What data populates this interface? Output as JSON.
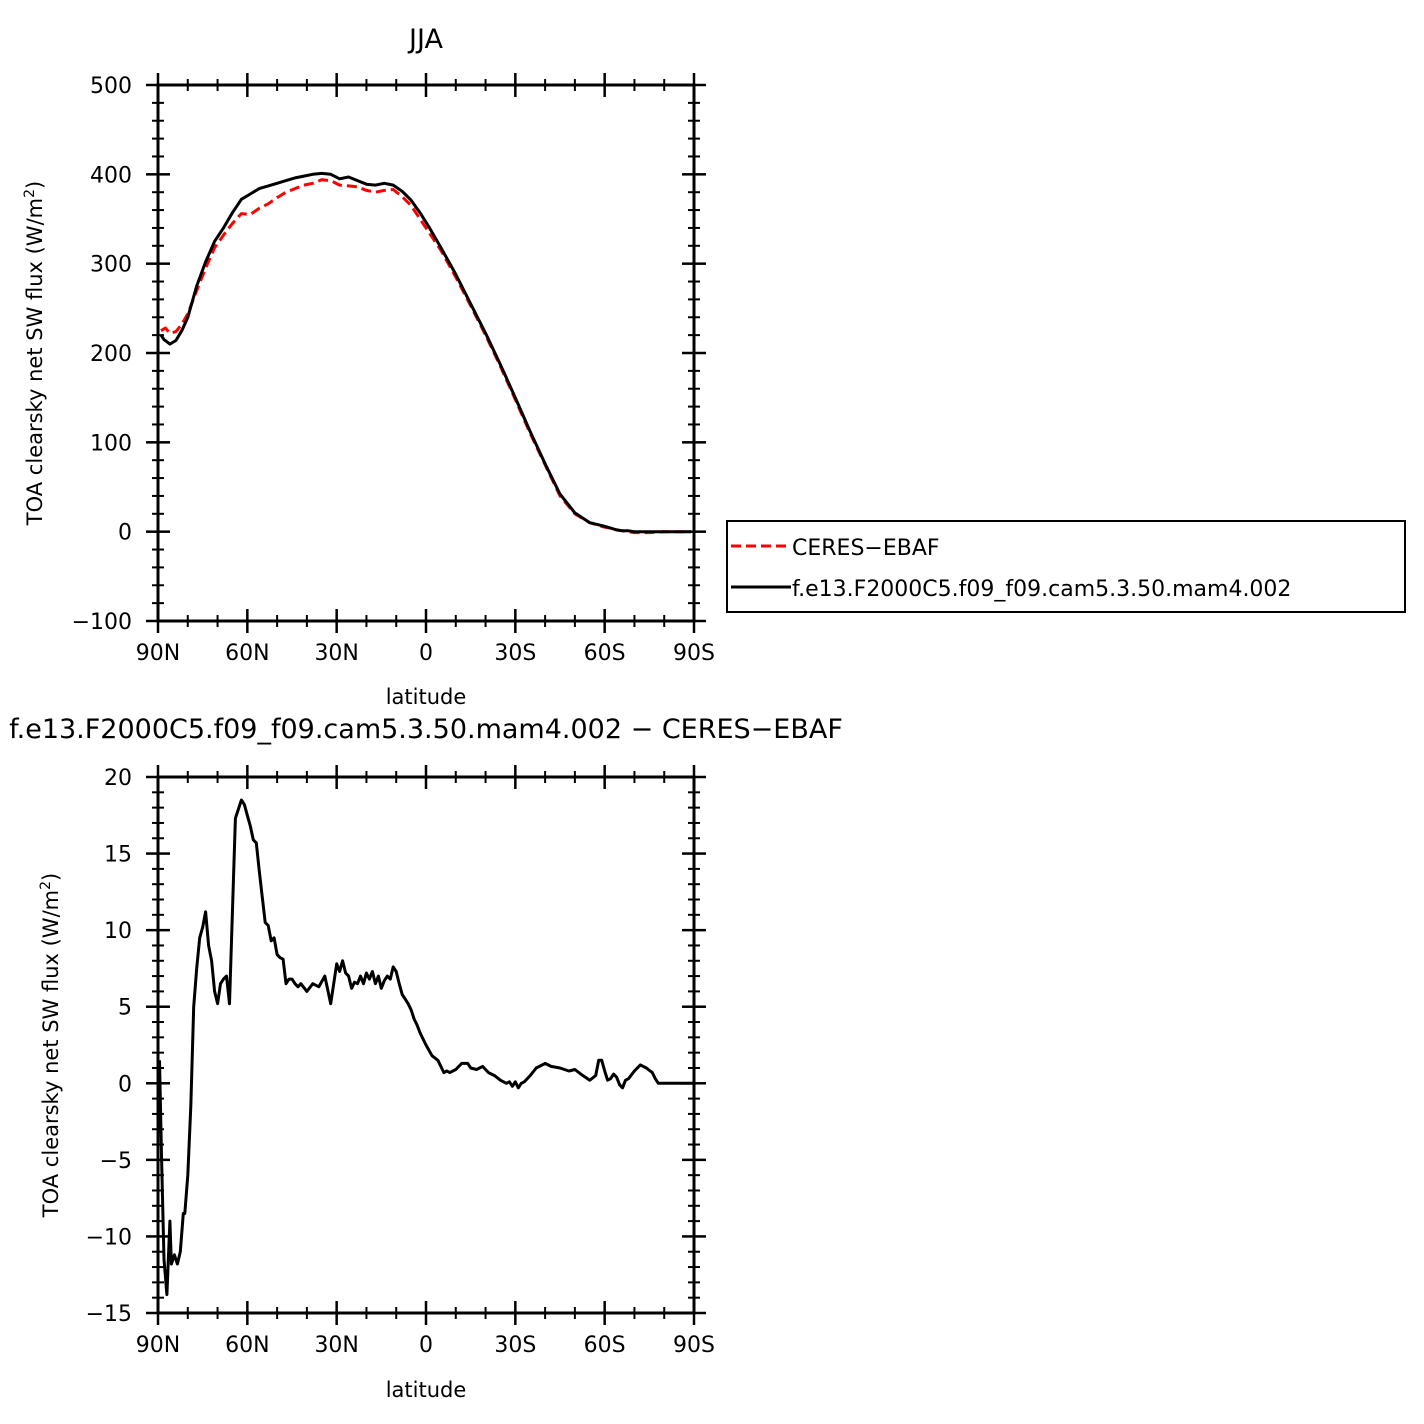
{
  "chart_data": [
    {
      "type": "line",
      "title": "JJA",
      "xlabel": "latitude",
      "ylabel": "TOA clearsky net SW flux (W/m²)",
      "xlim": [
        90,
        -90
      ],
      "ylim": [
        -100,
        500
      ],
      "xticks": [
        90,
        60,
        30,
        0,
        -30,
        -60,
        -90
      ],
      "xtick_labels": [
        "90N",
        "60N",
        "30N",
        "0",
        "30S",
        "60S",
        "90S"
      ],
      "yticks": [
        -100,
        0,
        100,
        200,
        300,
        400,
        500
      ],
      "ytick_labels": [
        "−100",
        "0",
        "100",
        "200",
        "300",
        "400",
        "500"
      ],
      "legend_position": "right",
      "series": [
        {
          "name": "CERES−EBAF",
          "color": "#ff0000",
          "dash": "dashed",
          "x": [
            89,
            87.5,
            86,
            84,
            82,
            80,
            77,
            74,
            71,
            68,
            65,
            62,
            59,
            56,
            53,
            50,
            47,
            44,
            41,
            38,
            35,
            32,
            29,
            26,
            23,
            20,
            17,
            14,
            11,
            8,
            5,
            2,
            -1,
            -5,
            -10,
            -15,
            -20,
            -25,
            -30,
            -35,
            -40,
            -45,
            -50,
            -55,
            -60,
            -62,
            -64,
            -66,
            -68,
            -70,
            -72,
            -75,
            -80,
            -85,
            -89
          ],
          "y": [
            225,
            228,
            222,
            224,
            232,
            244,
            270,
            295,
            318,
            332,
            345,
            356,
            355,
            362,
            367,
            374,
            380,
            384,
            388,
            390,
            394,
            393,
            388,
            387,
            386,
            382,
            380,
            382,
            383,
            375,
            365,
            350,
            335,
            315,
            285,
            253,
            220,
            185,
            148,
            110,
            75,
            40,
            20,
            10,
            5,
            4,
            2,
            1,
            0,
            -1,
            -1,
            -1,
            0,
            0,
            0
          ]
        },
        {
          "name": "f.e13.F2000C5.f09_f09.cam5.3.50.mam4.002",
          "color": "#000000",
          "dash": "solid",
          "x": [
            89,
            88,
            86,
            84,
            82,
            80,
            77,
            74,
            71,
            68,
            65,
            62,
            59,
            56,
            53,
            50,
            47,
            44,
            41,
            38,
            35,
            32,
            29,
            26,
            23,
            20,
            17,
            14,
            11,
            8,
            5,
            2,
            -1,
            -5,
            -10,
            -15,
            -20,
            -25,
            -30,
            -35,
            -40,
            -45,
            -50,
            -55,
            -60,
            -62,
            -64,
            -66,
            -68,
            -70,
            -72,
            -75,
            -80,
            -85,
            -89
          ],
          "y": [
            220,
            215,
            210,
            214,
            225,
            240,
            275,
            302,
            325,
            340,
            357,
            372,
            378,
            384,
            387,
            390,
            393,
            396,
            398,
            400,
            401,
            400,
            395,
            397,
            393,
            389,
            388,
            390,
            388,
            381,
            371,
            357,
            341,
            318,
            288,
            255,
            222,
            187,
            150,
            112,
            76,
            42,
            21,
            10,
            6,
            4,
            2,
            1,
            1,
            0,
            0,
            0,
            0,
            0,
            0
          ]
        }
      ]
    },
    {
      "type": "line",
      "title": "f.e13.F2000C5.f09_f09.cam5.3.50.mam4.002 − CERES−EBAF",
      "xlabel": "latitude",
      "ylabel": "TOA clearsky net SW flux (W/m²)",
      "xlim": [
        90,
        -90
      ],
      "ylim": [
        -15,
        20
      ],
      "xticks": [
        90,
        60,
        30,
        0,
        -30,
        -60,
        -90
      ],
      "xtick_labels": [
        "90N",
        "60N",
        "30N",
        "0",
        "30S",
        "60S",
        "90S"
      ],
      "yticks": [
        -15,
        -10,
        -5,
        0,
        5,
        10,
        15,
        20
      ],
      "ytick_labels": [
        "−15",
        "−10",
        "−5",
        "0",
        "5",
        "10",
        "15",
        "20"
      ],
      "series": [
        {
          "color": "#000000",
          "x": [
            89.5,
            88.8,
            88,
            87,
            86,
            85.5,
            84.5,
            83.5,
            82.5,
            81.5,
            81,
            80,
            79,
            78,
            77,
            76,
            75,
            74,
            73,
            72,
            71,
            70,
            69,
            68,
            67,
            66,
            64,
            62,
            61,
            60,
            59,
            58,
            57,
            56,
            55,
            54,
            53,
            52,
            51,
            50,
            49,
            48,
            47,
            46,
            45,
            44,
            43,
            42,
            40,
            38,
            36,
            34,
            32,
            30,
            29,
            28,
            27,
            26,
            25,
            24,
            23,
            22,
            21,
            20,
            19,
            18,
            17,
            16,
            15,
            14,
            13,
            12,
            11,
            10,
            9,
            8,
            7,
            6,
            5,
            4,
            3,
            2,
            1,
            0,
            -2,
            -4,
            -6,
            -7,
            -8,
            -10,
            -12,
            -14,
            -15,
            -17,
            -19,
            -21,
            -23,
            -25,
            -27,
            -28,
            -29,
            -30,
            -31,
            -32,
            -33,
            -35,
            -37,
            -40,
            -42,
            -45,
            -48,
            -50,
            -52,
            -55,
            -57,
            -58,
            -59,
            -60,
            -61,
            -62,
            -63,
            -64,
            -65,
            -66,
            -67,
            -68,
            -70,
            -72,
            -74,
            -76,
            -77,
            -78,
            -80,
            -85,
            -90
          ],
          "y": [
            1.5,
            -5,
            -11.5,
            -13.8,
            -9,
            -11.8,
            -11.2,
            -11.8,
            -11,
            -8.5,
            -8.5,
            -6,
            -1.5,
            5,
            7.5,
            9.5,
            10.2,
            11.2,
            9,
            8,
            6,
            5.2,
            6.5,
            6.8,
            7,
            5.2,
            17.3,
            18.5,
            18.2,
            17.5,
            16.8,
            15.9,
            15.7,
            13.9,
            12.2,
            10.5,
            10.3,
            9.3,
            9.5,
            8.4,
            8.2,
            8.1,
            6.5,
            6.8,
            6.8,
            6.5,
            6.3,
            6.5,
            6,
            6.5,
            6.3,
            7,
            5.2,
            7.8,
            7.3,
            8,
            7.2,
            7,
            6.2,
            6.6,
            6.5,
            7,
            6.5,
            7.2,
            6.8,
            7.3,
            6.5,
            7,
            6.2,
            6.7,
            7,
            6.8,
            7.6,
            7.3,
            6.5,
            5.8,
            5.5,
            5.2,
            4.8,
            4.2,
            3.8,
            3.3,
            2.9,
            2.5,
            1.8,
            1.5,
            0.7,
            0.8,
            0.7,
            0.9,
            1.3,
            1.3,
            1.0,
            0.9,
            1.1,
            0.7,
            0.5,
            0.2,
            0.0,
            0.1,
            -0.2,
            0.1,
            -0.3,
            0.0,
            0.1,
            0.5,
            1.0,
            1.3,
            1.1,
            1.0,
            0.8,
            0.9,
            0.6,
            0.2,
            0.5,
            1.5,
            1.5,
            0.8,
            0.2,
            0.3,
            0.6,
            0.4,
            -0.1,
            -0.3,
            0.2,
            0.3,
            0.8,
            1.2,
            1.0,
            0.7,
            0.3,
            0.0,
            0.0,
            0.0,
            0.0
          ]
        }
      ]
    }
  ]
}
